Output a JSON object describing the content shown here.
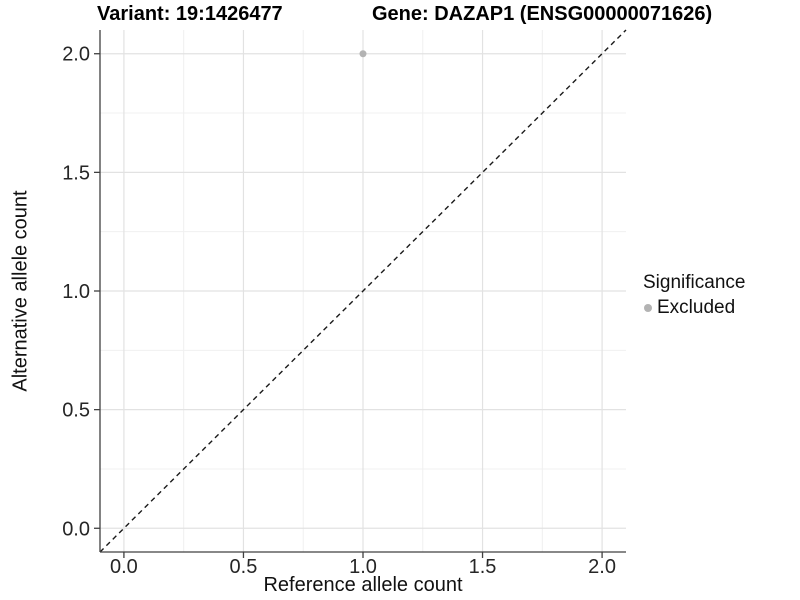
{
  "title": {
    "variant": "Variant: 19:1426477",
    "gene": "Gene: DAZAP1 (ENSG00000071626)"
  },
  "axes": {
    "xlabel": "Reference allele count",
    "ylabel": "Alternative allele count"
  },
  "legend": {
    "title": "Significance",
    "items": [
      {
        "label": "Excluded",
        "color": "#b3b3b3"
      }
    ]
  },
  "colors": {
    "background": "#ffffff",
    "grid_major": "#e2e2e2",
    "grid_minor": "#f0f0f0",
    "axis": "#404040",
    "reference_line": "#1a1a1a",
    "point": "#b3b3b3"
  },
  "chart_data": {
    "type": "scatter",
    "title": "Variant: 19:1426477    Gene: DAZAP1 (ENSG00000071626)",
    "xlabel": "Reference allele count",
    "ylabel": "Alternative allele count",
    "xlim": [
      -0.1,
      2.1
    ],
    "ylim": [
      -0.1,
      2.1
    ],
    "x_ticks": [
      0.0,
      0.5,
      1.0,
      1.5,
      2.0
    ],
    "y_ticks": [
      0.0,
      0.5,
      1.0,
      1.5,
      2.0
    ],
    "x_minor_ticks": [
      0.25,
      0.75,
      1.25,
      1.75
    ],
    "y_minor_ticks": [
      0.25,
      0.75,
      1.25,
      1.75
    ],
    "tick_format_decimals": 1,
    "grid": true,
    "legend_position": "right",
    "series": [
      {
        "name": "Excluded",
        "color": "#b3b3b3",
        "marker": "circle",
        "points": [
          [
            1.0,
            2.0
          ]
        ]
      }
    ],
    "reference_line": {
      "kind": "identity",
      "intercept": 0,
      "slope": 1,
      "style": "dashed",
      "color": "#1a1a1a"
    }
  }
}
